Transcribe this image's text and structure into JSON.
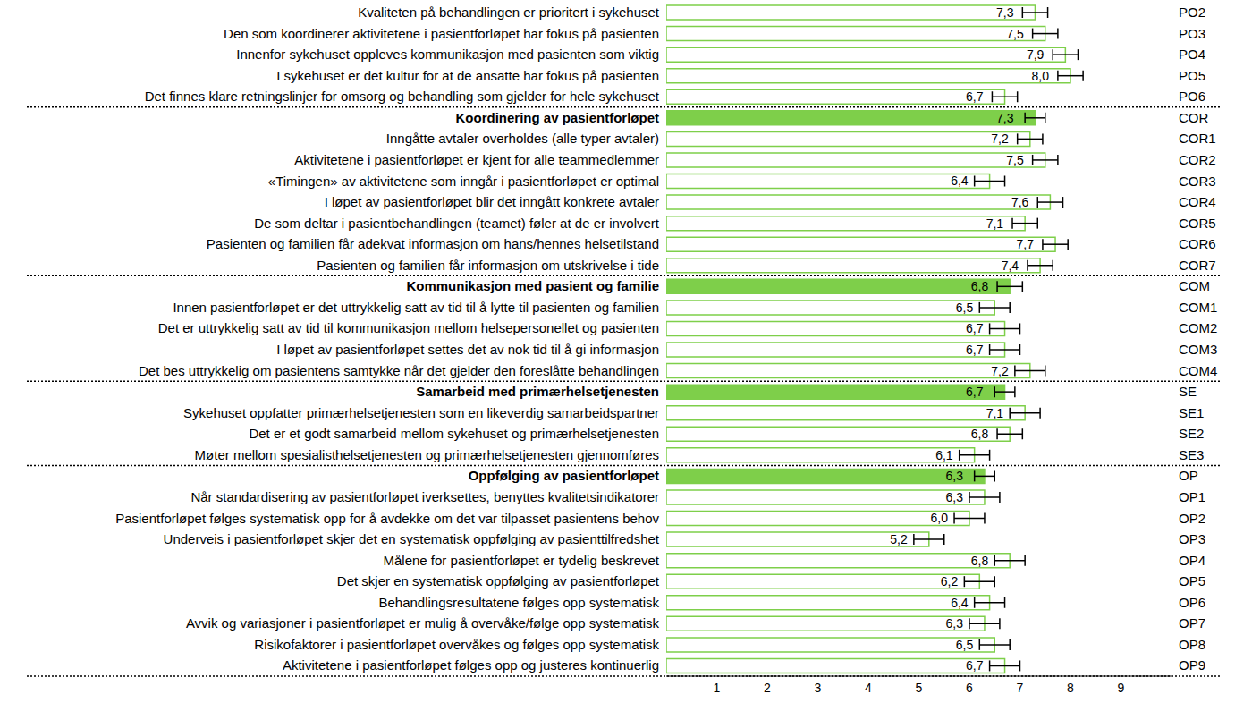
{
  "chart_data": {
    "type": "bar",
    "orientation": "horizontal",
    "grid": false,
    "data_labels": true,
    "color": "#7ecf4a",
    "categories": [
      "Kvaliteten på behandlingen er prioritert i sykehuset",
      "Den som koordinerer aktivitetene i pasientforløpet har fokus på pasienten",
      "Innenfor sykehuset oppleves kommunikasjon med pasienten som viktig",
      "I sykehuset er det kultur for at de ansatte har fokus på pasienten",
      "Det finnes klare retningslinjer for omsorg og behandling som gjelder for hele sykehuset",
      "Koordinering av pasientforløpet",
      "Inngåtte avtaler overholdes (alle typer avtaler)",
      "Aktivitetene i pasientforløpet er kjent for alle teammedlemmer",
      "«Timingen» av aktivitetene som inngår i pasientforløpet er optimal",
      "I løpet av pasientforløpet blir det inngått konkrete avtaler",
      "De som deltar i pasientbehandlingen (teamet) føler at de er involvert",
      "Pasienten og familien får adekvat informasjon om hans/hennes helsetilstand",
      "Pasienten og familien får informasjon om utskrivelse i tide",
      "Kommunikasjon med pasient og familie",
      "Innen pasientforløpet er det uttrykkelig satt av tid til å lytte til pasienten og familien",
      "Det er uttrykkelig satt av tid til kommunikasjon mellom helsepersonellet og pasienten",
      "I løpet av pasientforløpet settes det av nok tid til å gi informasjon",
      "Det bes uttrykkelig om pasientens samtykke når det gjelder den foreslåtte behandlingen",
      "Samarbeid med primærhelsetjenesten",
      "Sykehuset oppfatter primærhelsetjenesten som en likeverdig samarbeidspartner",
      "Det er et godt samarbeid mellom sykehuset og primærhelsetjenesten",
      "Møter mellom spesialisthelsetjenesten og primærhelsetjenesten gjennomføres",
      "Oppfølging av pasientforløpet",
      "Når standardisering av pasientforløpet iverksettes, benyttes kvalitetsindikatorer",
      "Pasientforløpet følges systematisk opp for å avdekke om det var tilpasset pasientens behov",
      "Underveis i pasientforløpet skjer det en systematisk oppfølging av pasienttilfredshet",
      "Målene for pasientforløpet er tydelig beskrevet",
      "Det skjer en systematisk oppfølging av pasientforløpet",
      "Behandlingsresultatene følges opp systematisk",
      "Avvik og variasjoner i pasientforløpet er mulig å overvåke/følge opp systematisk",
      "Risikofaktorer i pasientforløpet overvåkes og følges opp systematisk",
      "Aktivitetene i pasientforløpet følges opp og justeres kontinuerlig"
    ],
    "codes": [
      "PO2",
      "PO3",
      "PO4",
      "PO5",
      "PO6",
      "COR",
      "COR1",
      "COR2",
      "COR3",
      "COR4",
      "COR5",
      "COR6",
      "COR7",
      "COM",
      "COM1",
      "COM2",
      "COM3",
      "COM4",
      "SE",
      "SE1",
      "SE2",
      "SE3",
      "OP",
      "OP1",
      "OP2",
      "OP3",
      "OP4",
      "OP5",
      "OP6",
      "OP7",
      "OP8",
      "OP9"
    ],
    "values": [
      7.3,
      7.5,
      7.9,
      8.0,
      6.7,
      7.3,
      7.2,
      7.5,
      6.4,
      7.6,
      7.1,
      7.7,
      7.4,
      6.8,
      6.5,
      6.7,
      6.7,
      7.2,
      6.7,
      7.1,
      6.8,
      6.1,
      6.3,
      6.3,
      6.0,
      5.2,
      6.8,
      6.2,
      6.4,
      6.3,
      6.5,
      6.7
    ],
    "value_labels": [
      "7,3",
      "7,5",
      "7,9",
      "8,0",
      "6,7",
      "7,3",
      "7,2",
      "7,5",
      "6,4",
      "7,6",
      "7,1",
      "7,7",
      "7,4",
      "6,8",
      "6,5",
      "6,7",
      "6,7",
      "7,2",
      "6,7",
      "7,1",
      "6,8",
      "6,1",
      "6,3",
      "6,3",
      "6,0",
      "5,2",
      "6,8",
      "6,2",
      "6,4",
      "6,3",
      "6,5",
      "6,7"
    ],
    "errors": [
      0.25,
      0.25,
      0.25,
      0.25,
      0.25,
      0.2,
      0.25,
      0.25,
      0.3,
      0.25,
      0.25,
      0.25,
      0.25,
      0.25,
      0.3,
      0.3,
      0.3,
      0.3,
      0.2,
      0.3,
      0.25,
      0.3,
      0.2,
      0.3,
      0.3,
      0.3,
      0.3,
      0.3,
      0.3,
      0.3,
      0.3,
      0.3
    ],
    "colors": [
      "#ffffff",
      "#ffffff",
      "#ffffff",
      "#ffffff",
      "#ffffff",
      "#7ecf4a",
      "#ffffff",
      "#ffffff",
      "#ffffff",
      "#ffffff",
      "#ffffff",
      "#ffffff",
      "#ffffff",
      "#7ecf4a",
      "#ffffff",
      "#ffffff",
      "#ffffff",
      "#ffffff",
      "#7ecf4a",
      "#ffffff",
      "#ffffff",
      "#ffffff",
      "#7ecf4a",
      "#ffffff",
      "#ffffff",
      "#ffffff",
      "#ffffff",
      "#ffffff",
      "#ffffff",
      "#ffffff",
      "#ffffff",
      "#ffffff"
    ],
    "xlim": [
      0,
      10
    ],
    "xticks": [
      1,
      2,
      3,
      4,
      5,
      6,
      7,
      8,
      9
    ]
  }
}
